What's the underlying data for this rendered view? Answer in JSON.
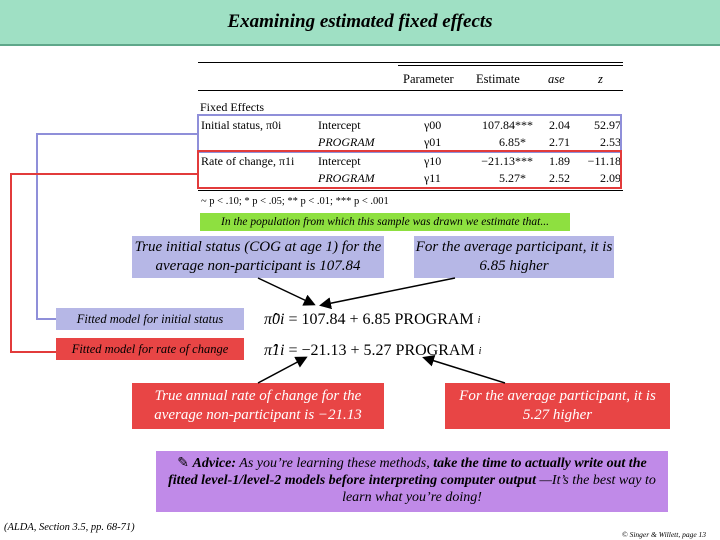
{
  "title": "Examining estimated fixed effects",
  "table": {
    "headers": {
      "parameter": "Parameter",
      "estimate": "Estimate",
      "ase": "ase",
      "z": "z"
    },
    "section_label": "Fixed Effects",
    "rows": [
      {
        "label": "Initial status, π0i",
        "predictor": "Intercept",
        "param": "γ00",
        "estimate": "107.84***",
        "ase": "2.04",
        "z": "52.97"
      },
      {
        "label": "",
        "predictor": "PROGRAM",
        "param": "γ01",
        "estimate": "6.85*",
        "ase": "2.71",
        "z": "2.53"
      },
      {
        "label": "Rate of change, π1i",
        "predictor": "Intercept",
        "param": "γ10",
        "estimate": "−21.13***",
        "ase": "1.89",
        "z": "−11.18"
      },
      {
        "label": "",
        "predictor": "PROGRAM",
        "param": "γ11",
        "estimate": "5.27*",
        "ase": "2.52",
        "z": "2.09"
      }
    ],
    "footnote": "~ p < .10; * p < .05; ** p < .01; *** p < .001"
  },
  "banner": "In the population from which this sample was drawn we estimate that...",
  "bubbles": {
    "true_initial": "True initial status (COG at age 1) for the average non-participant is 107.84",
    "avg_initial": "For the average participant, it is 6.85 higher",
    "true_rate": "True annual rate of change for the average non-participant is −21.13",
    "avg_rate": "For the average participant, it is 5.27 higher"
  },
  "fitted": {
    "initial_label": "Fitted model for initial status",
    "initial_eq": "= 107.84 + 6.85 PROGRAM",
    "initial_lhs": "π̂0i",
    "rate_label": "Fitted model for rate of change",
    "rate_eq": "= −21.13 + 5.27 PROGRAM",
    "rate_lhs": "π̂1i",
    "subscript_i": "i"
  },
  "advice": {
    "lead": "Advice:",
    "body": " As you’re learning these methods, ",
    "emph": "take the time to actually write out the fitted level-1/level-2 models before interpreting computer output",
    "tail": " —It’s the best way to learn what you’re doing!"
  },
  "footer": {
    "citation": "(ALDA, Section 3.5, pp. 68-71)",
    "credit": "© Singer & Willett, page 13"
  },
  "colors": {
    "title_bg": "#9fe0c4",
    "lavender": "#b6b7e6",
    "red": "#e84545",
    "banner": "#8ee040",
    "advice": "#c08ae8"
  }
}
